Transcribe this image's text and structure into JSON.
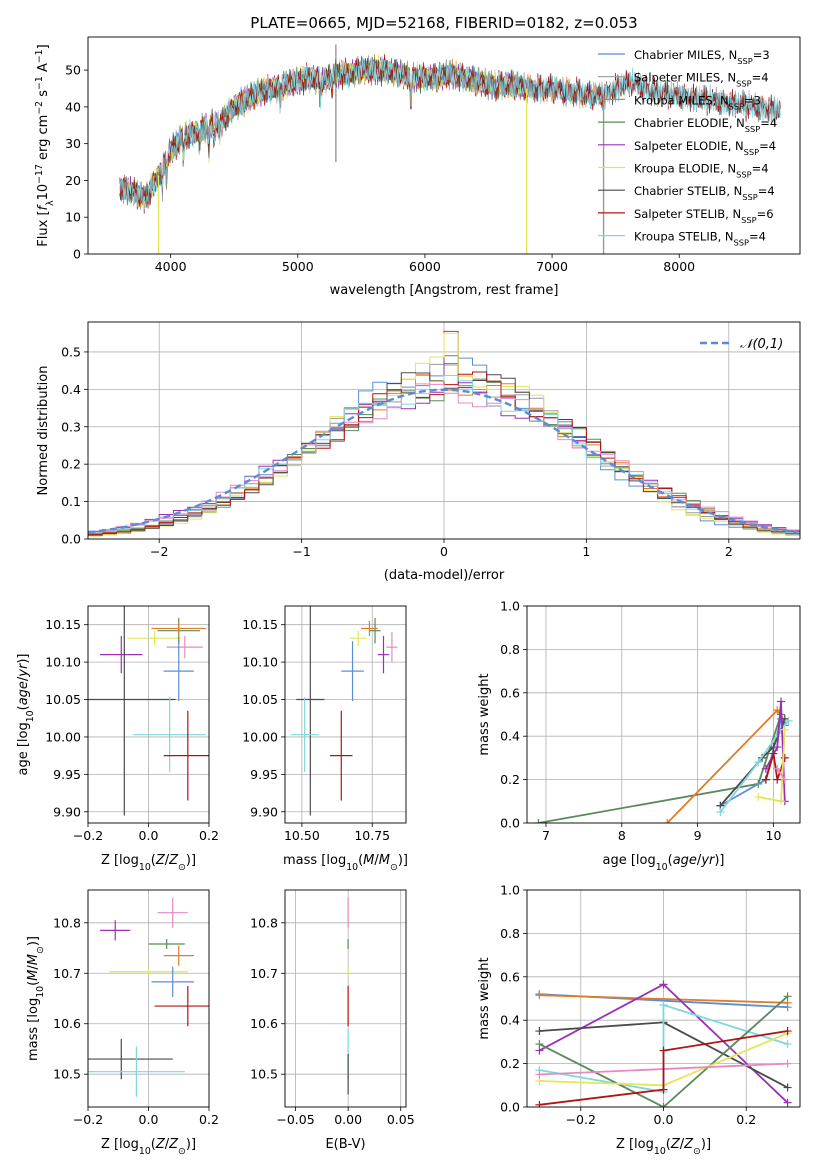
{
  "figure": {
    "title": "PLATE=0665, MJD=52168, FIBERID=0182, z=0.053"
  },
  "series_colors": {
    "Chabrier MILES": "#5b8dd6",
    "Salpeter MILES": "#9a9a9a",
    "Kroupa MILES": "#e07b28",
    "Chabrier ELODIE": "#5a8a5a",
    "Salpeter ELODIE": "#9b30b5",
    "Kroupa ELODIE": "#e2e65a",
    "Chabrier STELIB": "#4a4a4a",
    "Salpeter STELIB": "#b01515",
    "Kroupa STELIB": "#7fd6de",
    "Pink": "#e58ac2"
  },
  "chart_data": [
    {
      "id": "spectrum",
      "type": "line",
      "xlabel": "wavelength [Angstrom, rest frame]",
      "ylabel": "Flux [f_λ10^-17 erg cm^-2 s^-1 A^-1]",
      "xlim": [
        3350,
        8950
      ],
      "ylim": [
        0,
        59
      ],
      "xticks": [
        4000,
        5000,
        6000,
        7000,
        8000
      ],
      "yticks": [
        0,
        10,
        20,
        30,
        40,
        50
      ],
      "grid": false,
      "legend_position": "top-right",
      "legend": [
        {
          "label": "Chabrier MILES, N",
          "sub": "SSP",
          "suffix": "=3",
          "series": "Chabrier MILES"
        },
        {
          "label": "Salpeter MILES, N",
          "sub": "SSP",
          "suffix": "=4",
          "series": "Salpeter MILES"
        },
        {
          "label": "Kroupa MILES, N",
          "sub": "SSP",
          "suffix": "=3",
          "series": "Kroupa MILES"
        },
        {
          "label": "Chabrier ELODIE, N",
          "sub": "SSP",
          "suffix": "=4",
          "series": "Chabrier ELODIE"
        },
        {
          "label": "Salpeter ELODIE, N",
          "sub": "SSP",
          "suffix": "=4",
          "series": "Salpeter ELODIE"
        },
        {
          "label": "Kroupa ELODIE, N",
          "sub": "SSP",
          "suffix": "=4",
          "series": "Kroupa ELODIE"
        },
        {
          "label": "Chabrier STELIB, N",
          "sub": "SSP",
          "suffix": "=4",
          "series": "Chabrier STELIB"
        },
        {
          "label": "Salpeter STELIB, N",
          "sub": "SSP",
          "suffix": "=6",
          "series": "Salpeter STELIB"
        },
        {
          "label": "Kroupa STELIB, N",
          "sub": "SSP",
          "suffix": "=4",
          "series": "Kroupa STELIB"
        }
      ],
      "continuum": [
        [
          3600,
          18
        ],
        [
          3700,
          17
        ],
        [
          3800,
          15
        ],
        [
          3900,
          21
        ],
        [
          4000,
          28
        ],
        [
          4100,
          32
        ],
        [
          4200,
          33
        ],
        [
          4300,
          35
        ],
        [
          4400,
          36
        ],
        [
          4500,
          40
        ],
        [
          4600,
          42
        ],
        [
          4700,
          44
        ],
        [
          4800,
          45
        ],
        [
          4900,
          46
        ],
        [
          5000,
          47
        ],
        [
          5100,
          48
        ],
        [
          5200,
          47
        ],
        [
          5300,
          49
        ],
        [
          5400,
          49
        ],
        [
          5500,
          50
        ],
        [
          5600,
          50
        ],
        [
          5700,
          50
        ],
        [
          5800,
          49
        ],
        [
          5900,
          48
        ],
        [
          6000,
          48
        ],
        [
          6100,
          48
        ],
        [
          6200,
          49
        ],
        [
          6300,
          48
        ],
        [
          6400,
          47
        ],
        [
          6500,
          46
        ],
        [
          6600,
          46
        ],
        [
          6700,
          46
        ],
        [
          6800,
          45
        ],
        [
          6900,
          45
        ],
        [
          7000,
          45
        ],
        [
          7100,
          44
        ],
        [
          7200,
          44
        ],
        [
          7300,
          43
        ],
        [
          7400,
          43
        ],
        [
          7600,
          47
        ],
        [
          7800,
          44
        ],
        [
          8000,
          43
        ],
        [
          8200,
          42
        ],
        [
          8400,
          41
        ],
        [
          8600,
          40
        ],
        [
          8800,
          39
        ]
      ],
      "absorption": [
        [
          3934,
          6
        ],
        [
          3969,
          5
        ],
        [
          4102,
          6
        ],
        [
          4227,
          3
        ],
        [
          4300,
          7
        ],
        [
          4341,
          5
        ],
        [
          4383,
          4
        ],
        [
          4861,
          5
        ],
        [
          5175,
          5
        ],
        [
          5270,
          3
        ],
        [
          5890,
          7
        ],
        [
          6563,
          2
        ],
        [
          7600,
          2
        ]
      ],
      "dropouts": [
        {
          "series": "Salpeter MILES",
          "x": 7405
        },
        {
          "series": "Kroupa ELODIE",
          "x": 6800
        },
        {
          "series": "Kroupa ELODIE",
          "x": 3905
        }
      ],
      "spike": {
        "x": 5300,
        "y": 57
      }
    },
    {
      "id": "residuals",
      "type": "histogram",
      "xlabel": "(data-model)/error",
      "ylabel": "Normed distribution",
      "xlim": [
        -2.5,
        2.5
      ],
      "ylim": [
        0,
        0.58
      ],
      "xticks": [
        -2,
        -1,
        0,
        1,
        2
      ],
      "yticks": [
        0.0,
        0.1,
        0.2,
        0.3,
        0.4,
        0.5
      ],
      "grid": true,
      "bin_width": 0.1,
      "reference_curve": {
        "label": "𝒩(0,1)",
        "mean": 0,
        "sigma": 1,
        "color": "#5b8dd6"
      },
      "legend_position": "top-right",
      "peaks": {
        "Salpeter ELODIE": 0.555,
        "Kroupa ELODIE": 0.55,
        "Chabrier ELODIE": 0.49
      }
    },
    {
      "id": "age_vs_Z",
      "type": "errorbar",
      "xlabel": "Z [log10(Z/Z⊙)]",
      "ylabel": "age [log10(age/yr)]",
      "xlim": [
        -0.2,
        0.2
      ],
      "ylim": [
        9.885,
        10.175
      ],
      "xticks": [
        -0.2,
        0.0,
        0.2
      ],
      "yticks": [
        9.9,
        9.95,
        10.0,
        10.05,
        10.1,
        10.15
      ],
      "grid": true,
      "points": [
        {
          "series": "Salpeter ELODIE",
          "x": -0.09,
          "y": 10.11,
          "xerr": 0.07,
          "yerr": 0.025
        },
        {
          "series": "Kroupa ELODIE",
          "x": 0.02,
          "y": 10.132,
          "xerr": 0.09,
          "yerr": 0.01
        },
        {
          "series": "Chabrier ELODIE",
          "x": 0.1,
          "y": 10.142,
          "xerr": 0.07,
          "yerr": 0.017
        },
        {
          "series": "Kroupa MILES",
          "x": 0.1,
          "y": 10.145,
          "xerr": 0.09,
          "yerr": 0.01
        },
        {
          "series": "Pink",
          "x": 0.12,
          "y": 10.12,
          "xerr": 0.06,
          "yerr": 0.015
        },
        {
          "series": "Chabrier MILES",
          "x": 0.1,
          "y": 10.088,
          "xerr": 0.05,
          "yerr": 0.04
        },
        {
          "series": "Chabrier STELIB",
          "x": -0.08,
          "y": 10.05,
          "xerr": 0.17,
          "yerr": 0.155
        },
        {
          "series": "Kroupa STELIB",
          "x": 0.07,
          "y": 10.003,
          "xerr": 0.12,
          "yerr": 0.05
        },
        {
          "series": "Salpeter STELIB",
          "x": 0.13,
          "y": 9.975,
          "xerr": 0.08,
          "yerr": 0.06
        }
      ]
    },
    {
      "id": "age_vs_mass",
      "type": "errorbar",
      "xlabel": "mass [log10(M/M⊙)]",
      "ylabel": "",
      "xlim": [
        10.44,
        10.87
      ],
      "ylim": [
        9.885,
        10.175
      ],
      "xticks": [
        10.5,
        10.75
      ],
      "yticks": [
        9.9,
        9.95,
        10.0,
        10.05,
        10.1,
        10.15
      ],
      "grid": true,
      "points": [
        {
          "series": "Kroupa ELODIE",
          "x": 10.7,
          "y": 10.132,
          "xerr": 0.03,
          "yerr": 0.01
        },
        {
          "series": "Chabrier ELODIE",
          "x": 10.76,
          "y": 10.142,
          "xerr": 0.02,
          "yerr": 0.017
        },
        {
          "series": "Kroupa MILES",
          "x": 10.74,
          "y": 10.145,
          "xerr": 0.03,
          "yerr": 0.01
        },
        {
          "series": "Pink",
          "x": 10.82,
          "y": 10.12,
          "xerr": 0.02,
          "yerr": 0.02
        },
        {
          "series": "Salpeter ELODIE",
          "x": 10.79,
          "y": 10.11,
          "xerr": 0.02,
          "yerr": 0.025
        },
        {
          "series": "Chabrier MILES",
          "x": 10.68,
          "y": 10.088,
          "xerr": 0.04,
          "yerr": 0.04
        },
        {
          "series": "Chabrier STELIB",
          "x": 10.53,
          "y": 10.05,
          "xerr": 0.05,
          "yerr": 0.155
        },
        {
          "series": "Kroupa STELIB",
          "x": 10.51,
          "y": 10.003,
          "xerr": 0.05,
          "yerr": 0.05
        },
        {
          "series": "Salpeter STELIB",
          "x": 10.64,
          "y": 9.975,
          "xerr": 0.04,
          "yerr": 0.06
        }
      ]
    },
    {
      "id": "massweight_vs_age",
      "type": "line",
      "xlabel": "age [log10(age/yr)]",
      "ylabel": "mass weight",
      "xlim": [
        6.75,
        10.35
      ],
      "ylim": [
        0.0,
        1.0
      ],
      "xticks": [
        7,
        8,
        9,
        10
      ],
      "yticks": [
        0.0,
        0.2,
        0.4,
        0.6,
        0.8,
        1.0
      ],
      "grid": true,
      "series": [
        {
          "name": "Chabrier ELODIE",
          "x": [
            6.9,
            9.8,
            10.1
          ],
          "y": [
            0.0,
            0.18,
            0.5
          ]
        },
        {
          "name": "Kroupa MILES",
          "x": [
            8.6,
            10.05,
            10.15
          ],
          "y": [
            0.0,
            0.52,
            0.47
          ]
        },
        {
          "name": "Chabrier MILES",
          "x": [
            9.3,
            9.9,
            10.1,
            10.15
          ],
          "y": [
            0.08,
            0.2,
            0.48,
            0.45
          ]
        },
        {
          "name": "Chabrier STELIB",
          "x": [
            9.3,
            9.85,
            10.0,
            10.15
          ],
          "y": [
            0.08,
            0.3,
            0.35,
            0.48
          ]
        },
        {
          "name": "Kroupa STELIB",
          "x": [
            9.3,
            9.8,
            10.1,
            10.2
          ],
          "y": [
            0.05,
            0.28,
            0.43,
            0.47
          ]
        },
        {
          "name": "Salpeter ELODIE",
          "x": [
            9.9,
            10.05,
            10.1,
            10.15
          ],
          "y": [
            0.25,
            0.35,
            0.56,
            0.1
          ]
        },
        {
          "name": "Salpeter STELIB",
          "x": [
            9.9,
            10.0,
            10.05,
            10.15
          ],
          "y": [
            0.2,
            0.32,
            0.2,
            0.3
          ]
        },
        {
          "name": "Kroupa ELODIE",
          "x": [
            9.8,
            10.1,
            10.15
          ],
          "y": [
            0.12,
            0.1,
            0.43
          ]
        },
        {
          "name": "Pink",
          "x": [
            10.05,
            10.15
          ],
          "y": [
            0.25,
            0.2
          ]
        }
      ]
    },
    {
      "id": "mass_vs_Z",
      "type": "errorbar",
      "xlabel": "Z [log10(Z/Z⊙)]",
      "ylabel": "mass [log10(M/M⊙)]",
      "xlim": [
        -0.2,
        0.2
      ],
      "ylim": [
        10.435,
        10.865
      ],
      "xticks": [
        -0.2,
        0.0,
        0.2
      ],
      "yticks": [
        10.5,
        10.6,
        10.7,
        10.8
      ],
      "grid": true,
      "points": [
        {
          "series": "Salpeter ELODIE",
          "x": -0.11,
          "y": 10.785,
          "xerr": 0.05,
          "yerr": 0.02
        },
        {
          "series": "Pink",
          "x": 0.08,
          "y": 10.82,
          "xerr": 0.05,
          "yerr": 0.03
        },
        {
          "series": "Chabrier ELODIE",
          "x": 0.06,
          "y": 10.758,
          "xerr": 0.06,
          "yerr": 0.01
        },
        {
          "series": "Kroupa MILES",
          "x": 0.1,
          "y": 10.735,
          "xerr": 0.05,
          "yerr": 0.02
        },
        {
          "series": "Kroupa ELODIE",
          "x": 0.0,
          "y": 10.703,
          "xerr": 0.13,
          "yerr": 0.008
        },
        {
          "series": "Chabrier MILES",
          "x": 0.08,
          "y": 10.683,
          "xerr": 0.07,
          "yerr": 0.03
        },
        {
          "series": "Salpeter STELIB",
          "x": 0.13,
          "y": 10.635,
          "xerr": 0.11,
          "yerr": 0.04
        },
        {
          "series": "Chabrier STELIB",
          "x": -0.09,
          "y": 10.53,
          "xerr": 0.17,
          "yerr": 0.04
        },
        {
          "series": "Kroupa STELIB",
          "x": -0.04,
          "y": 10.505,
          "xerr": 0.16,
          "yerr": 0.05
        }
      ]
    },
    {
      "id": "mass_vs_EBV",
      "type": "errorbar",
      "xlabel": "E(B-V)",
      "ylabel": "",
      "xlim": [
        -0.06,
        0.055
      ],
      "ylim": [
        10.435,
        10.865
      ],
      "xticks": [
        -0.05,
        0.0,
        0.05
      ],
      "yticks": [
        10.5,
        10.6,
        10.7,
        10.8
      ],
      "grid": true,
      "points": [
        {
          "series": "Pink",
          "x": 0.0,
          "y": 10.82,
          "xerr": 0.0,
          "yerr": 0.03
        },
        {
          "series": "Chabrier ELODIE",
          "x": 0.0,
          "y": 10.758,
          "xerr": 0.0,
          "yerr": 0.01
        },
        {
          "series": "Kroupa ELODIE",
          "x": 0.0,
          "y": 10.703,
          "xerr": 0.0,
          "yerr": 0.008
        },
        {
          "series": "Salpeter STELIB",
          "x": 0.0,
          "y": 10.635,
          "xerr": 0.0,
          "yerr": 0.04
        },
        {
          "series": "Kroupa STELIB",
          "x": 0.0,
          "y": 10.54,
          "xerr": 0.0,
          "yerr": 0.05
        },
        {
          "series": "Chabrier STELIB",
          "x": 0.0,
          "y": 10.5,
          "xerr": 0.0,
          "yerr": 0.04
        }
      ]
    },
    {
      "id": "massweight_vs_Z",
      "type": "line",
      "xlabel": "Z [log10(Z/Z⊙)]",
      "ylabel": "mass weight",
      "xlim": [
        -0.33,
        0.33
      ],
      "ylim": [
        0.0,
        1.0
      ],
      "xticks": [
        -0.2,
        0.0,
        0.2
      ],
      "yticks": [
        0.0,
        0.2,
        0.4,
        0.6,
        0.8,
        1.0
      ],
      "grid": true,
      "series": [
        {
          "name": "Chabrier MILES",
          "x": [
            -0.3,
            0.3
          ],
          "y": [
            0.52,
            0.46
          ]
        },
        {
          "name": "Kroupa MILES",
          "x": [
            -0.3,
            0.3
          ],
          "y": [
            0.515,
            0.48
          ]
        },
        {
          "name": "Salpeter ELODIE",
          "x": [
            -0.3,
            0.0,
            0.3
          ],
          "y": [
            0.26,
            0.565,
            0.02
          ]
        },
        {
          "name": "Chabrier STELIB",
          "x": [
            -0.3,
            0.0,
            0.3
          ],
          "y": [
            0.35,
            0.39,
            0.09
          ]
        },
        {
          "name": "Kroupa STELIB",
          "x": [
            -0.3,
            0.0,
            0.0,
            0.3
          ],
          "y": [
            0.17,
            0.07,
            0.47,
            0.29
          ]
        },
        {
          "name": "Chabrier ELODIE",
          "x": [
            -0.3,
            0.0,
            0.3
          ],
          "y": [
            0.29,
            0.0,
            0.51
          ]
        },
        {
          "name": "Kroupa ELODIE",
          "x": [
            -0.3,
            0.0,
            0.3
          ],
          "y": [
            0.12,
            0.1,
            0.34
          ]
        },
        {
          "name": "Pink",
          "x": [
            -0.3,
            0.3
          ],
          "y": [
            0.15,
            0.2
          ]
        },
        {
          "name": "Salpeter STELIB",
          "x": [
            -0.3,
            0.0,
            0.0,
            0.3
          ],
          "y": [
            0.01,
            0.08,
            0.26,
            0.35
          ]
        }
      ]
    }
  ]
}
